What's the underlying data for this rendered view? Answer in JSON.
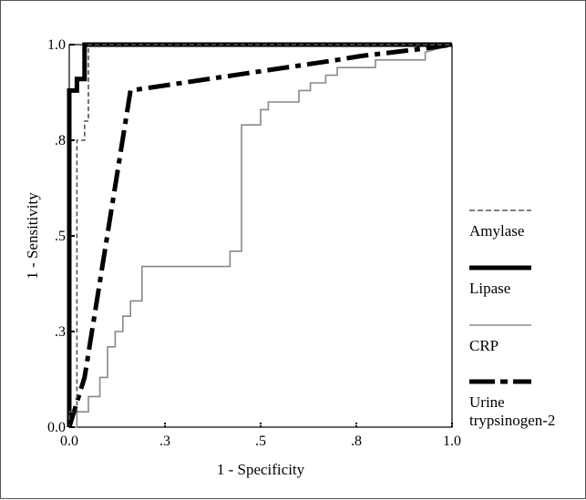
{
  "chart_data": {
    "type": "line",
    "title": "",
    "xlabel": "1 - Specificity",
    "ylabel": "1 - Sensitivity",
    "xlim": [
      0,
      1
    ],
    "ylim": [
      0,
      1
    ],
    "x_ticks": [
      {
        "value": 0.0,
        "label": "0.0"
      },
      {
        "value": 0.25,
        "label": ".3"
      },
      {
        "value": 0.5,
        "label": ".5"
      },
      {
        "value": 0.75,
        "label": ".8"
      },
      {
        "value": 1.0,
        "label": "1.0"
      }
    ],
    "y_ticks": [
      {
        "value": 0.0,
        "label": "0.0"
      },
      {
        "value": 0.25,
        "label": ".3"
      },
      {
        "value": 0.5,
        "label": ".5"
      },
      {
        "value": 0.75,
        "label": ".8"
      },
      {
        "value": 1.0,
        "label": "1.0"
      }
    ],
    "grid": false,
    "legend_position": "right",
    "series": [
      {
        "name": "Amylase",
        "style": "dashed-thin",
        "color": "#555555",
        "points": [
          [
            0,
            0
          ],
          [
            0,
            0.04
          ],
          [
            0.02,
            0.04
          ],
          [
            0.02,
            0.75
          ],
          [
            0.04,
            0.75
          ],
          [
            0.04,
            0.8
          ],
          [
            0.05,
            0.8
          ],
          [
            0.05,
            1.0
          ],
          [
            1.0,
            1.0
          ]
        ]
      },
      {
        "name": "Lipase",
        "style": "solid-thick",
        "color": "#000000",
        "points": [
          [
            0,
            0
          ],
          [
            0,
            0.88
          ],
          [
            0.02,
            0.88
          ],
          [
            0.02,
            0.91
          ],
          [
            0.04,
            0.91
          ],
          [
            0.04,
            1.0
          ],
          [
            1.0,
            1.0
          ]
        ]
      },
      {
        "name": "CRP",
        "style": "solid-thin",
        "color": "#888888",
        "points": [
          [
            0,
            0
          ],
          [
            0.02,
            0
          ],
          [
            0.02,
            0.04
          ],
          [
            0.05,
            0.04
          ],
          [
            0.05,
            0.08
          ],
          [
            0.08,
            0.08
          ],
          [
            0.08,
            0.13
          ],
          [
            0.1,
            0.13
          ],
          [
            0.1,
            0.21
          ],
          [
            0.12,
            0.21
          ],
          [
            0.12,
            0.25
          ],
          [
            0.14,
            0.25
          ],
          [
            0.14,
            0.29
          ],
          [
            0.16,
            0.29
          ],
          [
            0.16,
            0.33
          ],
          [
            0.19,
            0.33
          ],
          [
            0.19,
            0.42
          ],
          [
            0.42,
            0.42
          ],
          [
            0.42,
            0.46
          ],
          [
            0.45,
            0.46
          ],
          [
            0.45,
            0.79
          ],
          [
            0.5,
            0.79
          ],
          [
            0.5,
            0.83
          ],
          [
            0.52,
            0.83
          ],
          [
            0.52,
            0.85
          ],
          [
            0.6,
            0.85
          ],
          [
            0.6,
            0.88
          ],
          [
            0.63,
            0.88
          ],
          [
            0.63,
            0.9
          ],
          [
            0.67,
            0.9
          ],
          [
            0.67,
            0.92
          ],
          [
            0.7,
            0.92
          ],
          [
            0.7,
            0.94
          ],
          [
            0.8,
            0.94
          ],
          [
            0.8,
            0.96
          ],
          [
            0.93,
            0.96
          ],
          [
            0.93,
            0.98
          ],
          [
            1.0,
            1.0
          ]
        ]
      },
      {
        "name": "Urine\ntrypsinogen-2",
        "label_lines": [
          "Urine",
          "trypsinogen-2"
        ],
        "style": "dashdot-thick",
        "color": "#000000",
        "points": [
          [
            0,
            0
          ],
          [
            0.04,
            0.13
          ],
          [
            0.16,
            0.88
          ],
          [
            0.7,
            0.96
          ],
          [
            0.76,
            0.97
          ],
          [
            0.93,
            0.99
          ],
          [
            1.0,
            1.0
          ]
        ]
      }
    ]
  }
}
